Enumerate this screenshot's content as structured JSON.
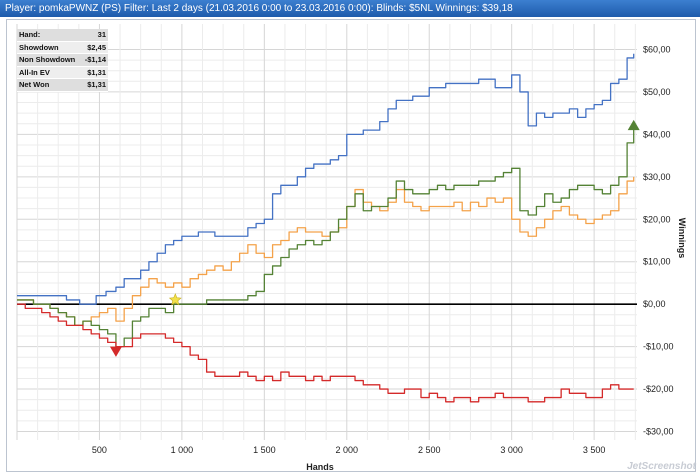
{
  "header": {
    "player_label": "Player:",
    "player_name": "pomkaPWNZ (PS)",
    "filter_label": "Filter:",
    "filter_value": "Last 2 days (21.03.2016 0:00 to 23.03.2016 0:00): Blinds: $5NL",
    "winnings_label": "Winnings:",
    "winnings_value": "$39,18"
  },
  "stats": [
    {
      "label": "Hand:",
      "value": "31"
    },
    {
      "label": "Showdown",
      "value": "$2,45"
    },
    {
      "label": "Non Showdown",
      "value": "-$1,14"
    },
    {
      "label": "All-In EV",
      "value": "$1,31"
    },
    {
      "label": "Net Won",
      "value": "$1,31"
    }
  ],
  "watermark": "JetScreenshot",
  "chart_data": {
    "type": "line",
    "xlabel": "Hands",
    "ylabel": "Winnings",
    "xlim": [
      0,
      3760
    ],
    "ylim": [
      -32,
      66
    ],
    "x_ticks": [
      500,
      1000,
      1500,
      2000,
      2500,
      3000,
      3500
    ],
    "x_tick_labels": [
      "500",
      "1 000",
      "1 500",
      "2 000",
      "2 500",
      "3 000",
      "3 500"
    ],
    "y_ticks": [
      -30,
      -20,
      -10,
      0,
      10,
      20,
      30,
      40,
      50,
      60
    ],
    "y_tick_labels": [
      "-$30,00",
      "-$20,00",
      "-$10,00",
      "$0,00",
      "$10,00",
      "$20,00",
      "$30,00",
      "$40,00",
      "$50,00",
      "$60,00"
    ],
    "grid": true,
    "colors": {
      "blue": "#4472c4",
      "green": "#548235",
      "orange": "#f4a24a",
      "red": "#d42a2a",
      "zero": "#000000"
    },
    "series": [
      {
        "color": "blue",
        "x": [
          0,
          100,
          200,
          300,
          380,
          420,
          480,
          540,
          600,
          650,
          700,
          750,
          800,
          850,
          900,
          950,
          1000,
          1100,
          1200,
          1300,
          1400,
          1450,
          1500,
          1550,
          1600,
          1700,
          1750,
          1800,
          1850,
          1900,
          1950,
          2000,
          2050,
          2100,
          2200,
          2250,
          2300,
          2400,
          2500,
          2600,
          2700,
          2800,
          2900,
          3000,
          3050,
          3100,
          3150,
          3200,
          3250,
          3300,
          3350,
          3400,
          3450,
          3500,
          3550,
          3600,
          3650,
          3700,
          3740
        ],
        "y": [
          2,
          2,
          2,
          1,
          0,
          0,
          2,
          3,
          4,
          6,
          6,
          8,
          10,
          12,
          14,
          15,
          16,
          17,
          16,
          16,
          18,
          19,
          20,
          26,
          28,
          30,
          32,
          33,
          33,
          34,
          35,
          40,
          40,
          41,
          43,
          46,
          48,
          49,
          51,
          52,
          52,
          53,
          51,
          54,
          50,
          42,
          45,
          44,
          45,
          45,
          46,
          44,
          46,
          47,
          48,
          52,
          53,
          58,
          59
        ]
      },
      {
        "color": "orange",
        "x": [
          0,
          50,
          100,
          150,
          200,
          250,
          300,
          350,
          400,
          450,
          500,
          550,
          600,
          650,
          700,
          750,
          800,
          850,
          900,
          950,
          1000,
          1050,
          1100,
          1150,
          1200,
          1250,
          1300,
          1350,
          1400,
          1450,
          1500,
          1550,
          1600,
          1650,
          1700,
          1750,
          1800,
          1850,
          1900,
          1950,
          2000,
          2050,
          2100,
          2150,
          2200,
          2250,
          2300,
          2350,
          2400,
          2450,
          2500,
          2550,
          2600,
          2650,
          2700,
          2750,
          2800,
          2850,
          2900,
          2950,
          3000,
          3050,
          3100,
          3150,
          3200,
          3250,
          3300,
          3350,
          3400,
          3450,
          3500,
          3550,
          3600,
          3650,
          3700,
          3740
        ],
        "y": [
          1,
          1,
          0,
          0,
          -1,
          -2,
          -3,
          -5,
          -4,
          -3,
          -2,
          -1,
          -4,
          -1,
          2,
          4,
          6,
          5,
          4,
          5,
          4,
          6,
          7,
          8,
          9,
          8,
          10,
          12,
          14,
          12,
          11,
          14,
          15,
          17,
          18,
          17,
          17,
          16,
          17,
          18,
          23,
          27,
          24,
          23,
          22,
          24,
          27,
          24,
          23,
          22,
          23,
          23,
          23,
          24,
          22,
          24,
          23,
          25,
          24,
          25,
          20,
          17,
          16,
          18,
          20,
          22,
          23,
          21,
          20,
          19,
          20,
          21,
          22,
          26,
          29,
          30
        ]
      },
      {
        "color": "green",
        "x": [
          0,
          50,
          100,
          150,
          200,
          250,
          300,
          350,
          400,
          450,
          500,
          550,
          600,
          650,
          700,
          750,
          800,
          850,
          900,
          950,
          1000,
          1050,
          1100,
          1150,
          1200,
          1250,
          1300,
          1350,
          1400,
          1450,
          1500,
          1550,
          1600,
          1650,
          1700,
          1750,
          1800,
          1850,
          1900,
          1950,
          2000,
          2050,
          2100,
          2150,
          2200,
          2250,
          2300,
          2350,
          2400,
          2450,
          2500,
          2550,
          2600,
          2650,
          2700,
          2750,
          2800,
          2850,
          2900,
          2950,
          3000,
          3050,
          3100,
          3150,
          3200,
          3250,
          3300,
          3350,
          3400,
          3450,
          3500,
          3550,
          3600,
          3650,
          3700,
          3740
        ],
        "y": [
          1,
          1,
          0,
          0,
          -1,
          -2,
          -3,
          -5,
          -4,
          -5,
          -6,
          -7,
          -10,
          -8,
          -4,
          -3,
          -1,
          -1,
          -2,
          0,
          0,
          0,
          0,
          1,
          1,
          1,
          1,
          1,
          2,
          3,
          7,
          9,
          11,
          13,
          14,
          15,
          14,
          15,
          17,
          20,
          23,
          26,
          22,
          23,
          23,
          25,
          29,
          27,
          26,
          26,
          27,
          28,
          27,
          28,
          28,
          28,
          29,
          29,
          30,
          31,
          32,
          22,
          21,
          23,
          26,
          24,
          25,
          27,
          28,
          28,
          27,
          26,
          28,
          30,
          38,
          42
        ]
      },
      {
        "color": "red",
        "x": [
          0,
          50,
          100,
          150,
          200,
          250,
          300,
          350,
          400,
          450,
          500,
          550,
          600,
          650,
          700,
          750,
          800,
          850,
          900,
          950,
          1000,
          1050,
          1100,
          1150,
          1200,
          1250,
          1300,
          1350,
          1400,
          1450,
          1500,
          1550,
          1600,
          1650,
          1700,
          1750,
          1800,
          1850,
          1900,
          1950,
          2000,
          2050,
          2100,
          2150,
          2200,
          2250,
          2300,
          2350,
          2400,
          2450,
          2500,
          2550,
          2600,
          2650,
          2700,
          2750,
          2800,
          2850,
          2900,
          2950,
          3000,
          3050,
          3100,
          3150,
          3200,
          3250,
          3300,
          3350,
          3400,
          3450,
          3500,
          3550,
          3600,
          3650,
          3700,
          3740
        ],
        "y": [
          0,
          -1,
          -1,
          -2,
          -3,
          -4,
          -5,
          -5,
          -6,
          -7,
          -8,
          -9,
          -10,
          -10,
          -8,
          -7,
          -7,
          -7,
          -8,
          -9,
          -10,
          -12,
          -13,
          -16,
          -17,
          -17,
          -17,
          -16,
          -17,
          -18,
          -17,
          -18,
          -16,
          -17,
          -17,
          -18,
          -17,
          -18,
          -17,
          -17,
          -17,
          -18,
          -19,
          -19,
          -20,
          -21,
          -21,
          -20,
          -20,
          -22,
          -21,
          -22,
          -23,
          -22,
          -22,
          -23,
          -22,
          -22,
          -21,
          -22,
          -22,
          -22,
          -23,
          -23,
          -22,
          -22,
          -20,
          -21,
          -21,
          -22,
          -22,
          -20,
          -19,
          -20,
          -20,
          -20
        ]
      }
    ],
    "markers": [
      {
        "shape": "triangle-up",
        "color": "green",
        "x": 3740,
        "y": 42
      },
      {
        "shape": "triangle-down",
        "color": "red",
        "x": 600,
        "y": -11
      },
      {
        "shape": "star",
        "color": "#f1e04a",
        "x": 960,
        "y": 1
      }
    ]
  }
}
